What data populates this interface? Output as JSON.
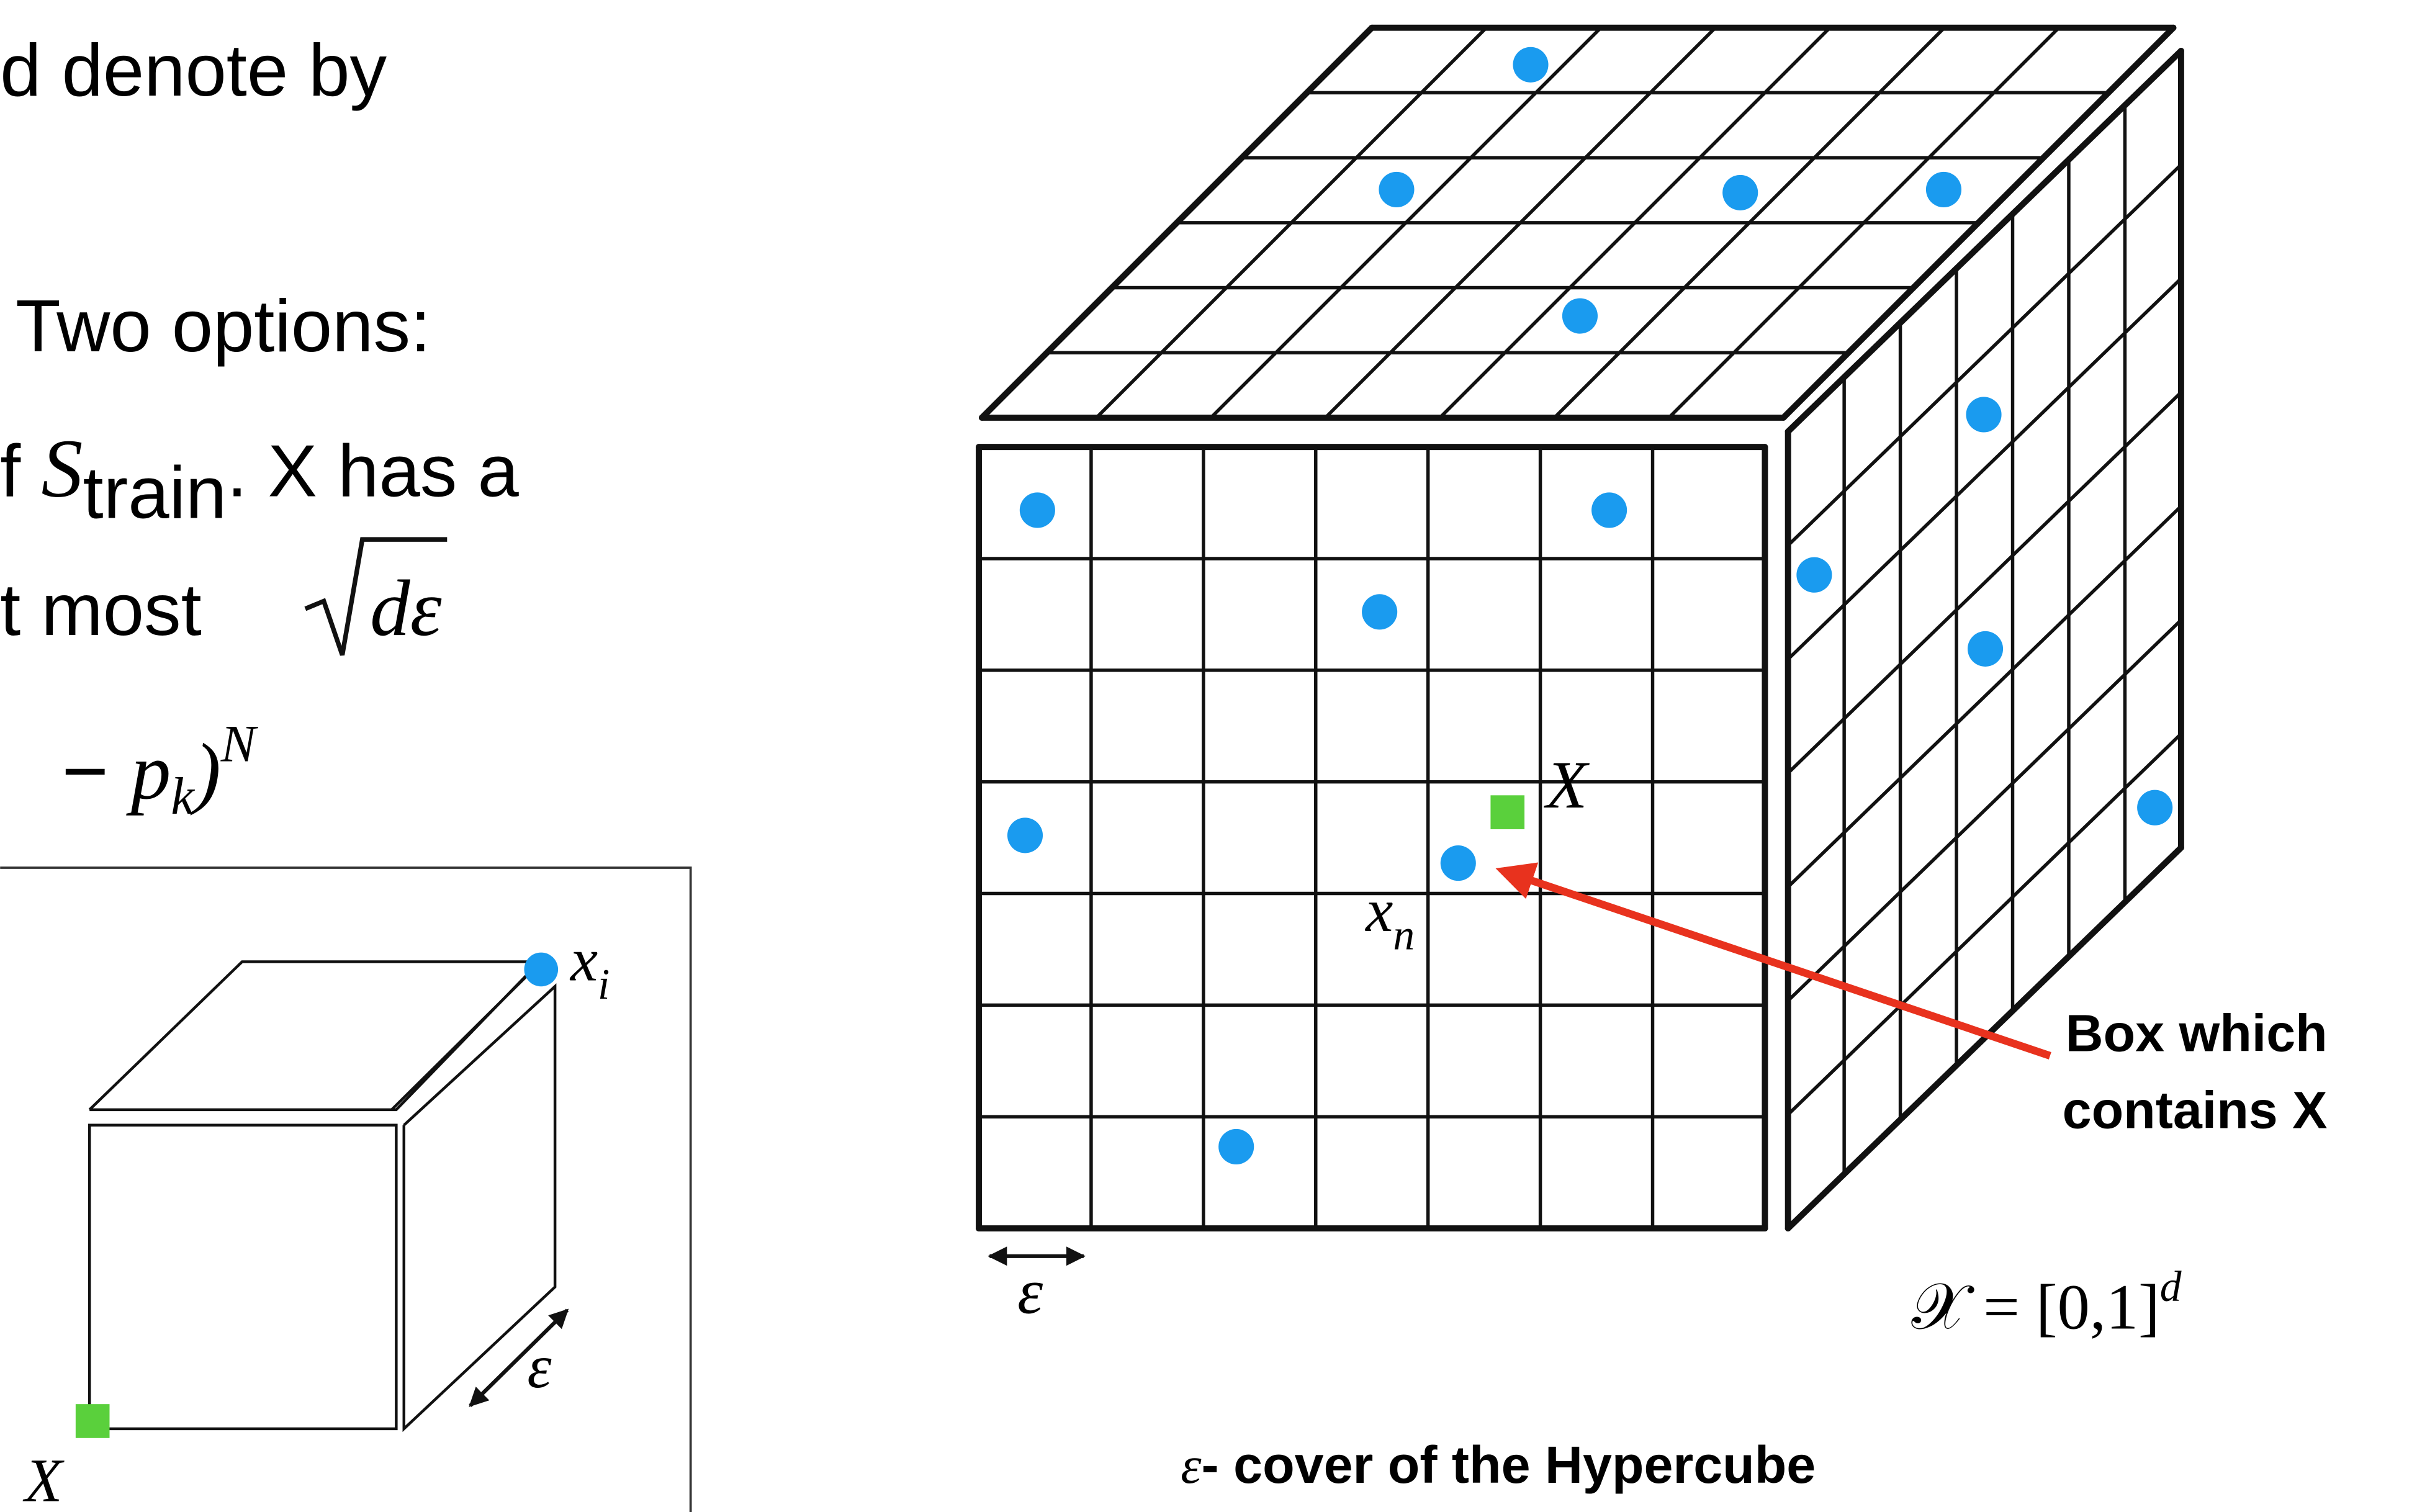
{
  "left_text": {
    "line1": "d  denote by",
    "line2": "Two options:",
    "line3_prefix": "f ",
    "line3_var": "S",
    "line3_sub": "train",
    "line3_suffix": ". X has a",
    "line4_prefix": "t most ",
    "line4_math": "dε",
    "line5_prefix": "− ",
    "line5_var": "p",
    "line5_sub": "k",
    "line5_suffix": ")",
    "line5_sup": "N"
  },
  "small_cube": {
    "point_label": "x",
    "point_sub": "i",
    "query_label": "X",
    "side_label": "ε"
  },
  "hypercube": {
    "query_label": "X",
    "nearest_label": "x",
    "nearest_sub": "n",
    "cell_label": "ε",
    "annotation": [
      "Box which",
      "contains X"
    ],
    "space_label": "𝒳 = [0,1]",
    "space_sup": "d",
    "caption_symbol": "ε",
    "caption": "- cover of the Hypercube"
  }
}
